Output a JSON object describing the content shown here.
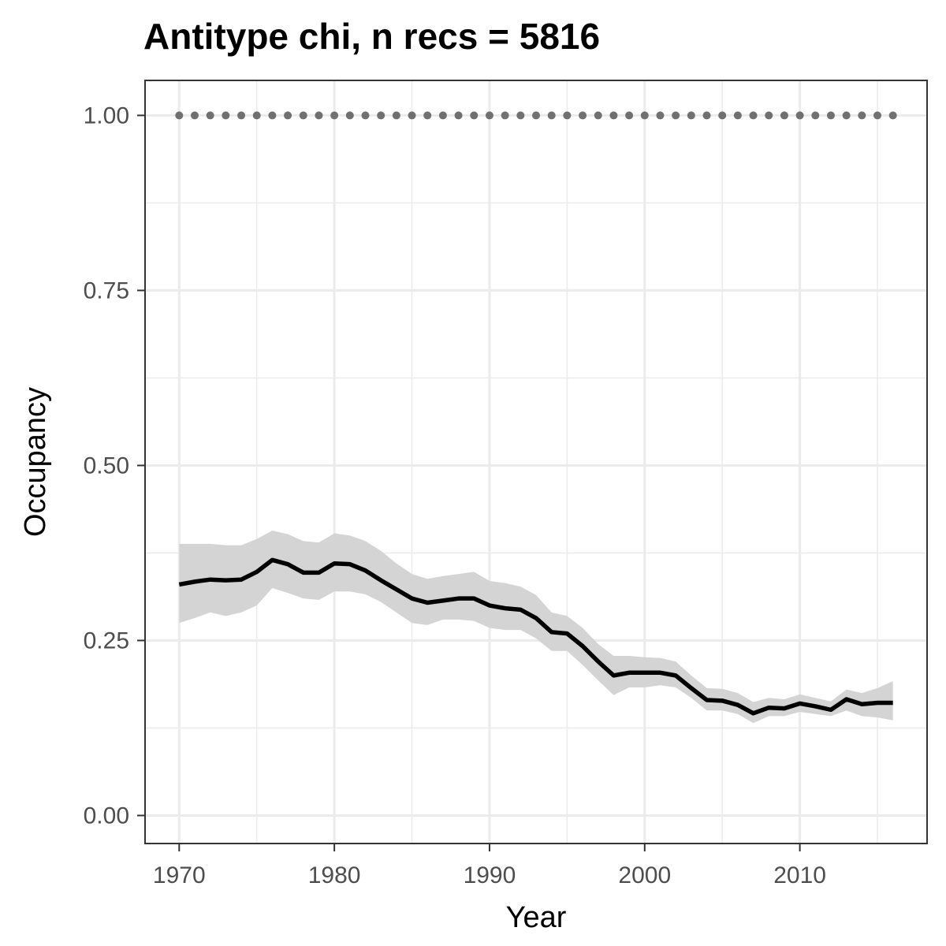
{
  "chart_data": {
    "type": "line",
    "title": "Antitype chi, n recs = 5816",
    "xlabel": "Year",
    "ylabel": "Occupancy",
    "xlim": [
      1967.8,
      2018.2
    ],
    "ylim": [
      -0.04,
      1.05
    ],
    "x_ticks": [
      1970,
      1980,
      1990,
      2000,
      2010
    ],
    "x_tick_labels": [
      "1970",
      "1980",
      "1990",
      "2000",
      "2010"
    ],
    "y_ticks": [
      0,
      0.25,
      0.5,
      0.75,
      1.0
    ],
    "y_tick_labels": [
      "0.00",
      "0.25",
      "0.50",
      "0.75",
      "1.00"
    ],
    "grid": true,
    "legend": "none",
    "colors": {
      "line": "#000000",
      "ribbon": "#d4d4d4",
      "reference_points": "#707070",
      "grid": "#ebebeb",
      "panel_border": "#333333"
    },
    "x": [
      1970,
      1971,
      1972,
      1973,
      1974,
      1975,
      1976,
      1977,
      1978,
      1979,
      1980,
      1981,
      1982,
      1983,
      1984,
      1985,
      1986,
      1987,
      1988,
      1989,
      1990,
      1991,
      1992,
      1993,
      1994,
      1995,
      1996,
      1997,
      1998,
      1999,
      2000,
      2001,
      2002,
      2003,
      2004,
      2005,
      2006,
      2007,
      2008,
      2009,
      2010,
      2011,
      2012,
      2013,
      2014,
      2015,
      2016
    ],
    "series": [
      {
        "values": [
          0.33,
          0.334,
          0.337,
          0.336,
          0.337,
          0.348,
          0.365,
          0.359,
          0.347,
          0.347,
          0.36,
          0.359,
          0.35,
          0.336,
          0.323,
          0.31,
          0.304,
          0.307,
          0.31,
          0.31,
          0.3,
          0.296,
          0.294,
          0.282,
          0.262,
          0.26,
          0.242,
          0.22,
          0.2,
          0.204,
          0.204,
          0.204,
          0.2,
          0.182,
          0.165,
          0.164,
          0.158,
          0.146,
          0.154,
          0.153,
          0.16,
          0.156,
          0.151,
          0.166,
          0.159,
          0.161,
          0.161
        ],
        "lower": [
          0.275,
          0.282,
          0.29,
          0.285,
          0.29,
          0.3,
          0.325,
          0.318,
          0.31,
          0.308,
          0.32,
          0.32,
          0.316,
          0.305,
          0.29,
          0.275,
          0.272,
          0.28,
          0.28,
          0.278,
          0.268,
          0.265,
          0.265,
          0.253,
          0.235,
          0.235,
          0.215,
          0.193,
          0.172,
          0.183,
          0.183,
          0.186,
          0.183,
          0.168,
          0.15,
          0.15,
          0.145,
          0.132,
          0.142,
          0.142,
          0.148,
          0.145,
          0.142,
          0.15,
          0.142,
          0.14,
          0.136
        ],
        "upper": [
          0.388,
          0.388,
          0.388,
          0.386,
          0.386,
          0.395,
          0.407,
          0.402,
          0.392,
          0.39,
          0.403,
          0.4,
          0.392,
          0.378,
          0.36,
          0.345,
          0.338,
          0.342,
          0.345,
          0.348,
          0.335,
          0.332,
          0.327,
          0.315,
          0.29,
          0.285,
          0.268,
          0.245,
          0.228,
          0.228,
          0.226,
          0.225,
          0.22,
          0.2,
          0.182,
          0.181,
          0.175,
          0.162,
          0.168,
          0.166,
          0.173,
          0.168,
          0.163,
          0.18,
          0.175,
          0.182,
          0.192
        ]
      },
      {
        "values": [
          1,
          1,
          1,
          1,
          1,
          1,
          1,
          1,
          1,
          1,
          1,
          1,
          1,
          1,
          1,
          1,
          1,
          1,
          1,
          1,
          1,
          1,
          1,
          1,
          1,
          1,
          1,
          1,
          1,
          1,
          1,
          1,
          1,
          1,
          1,
          1,
          1,
          1,
          1,
          1,
          1,
          1,
          1,
          1,
          1,
          1,
          1
        ],
        "style": "dotted"
      }
    ]
  }
}
